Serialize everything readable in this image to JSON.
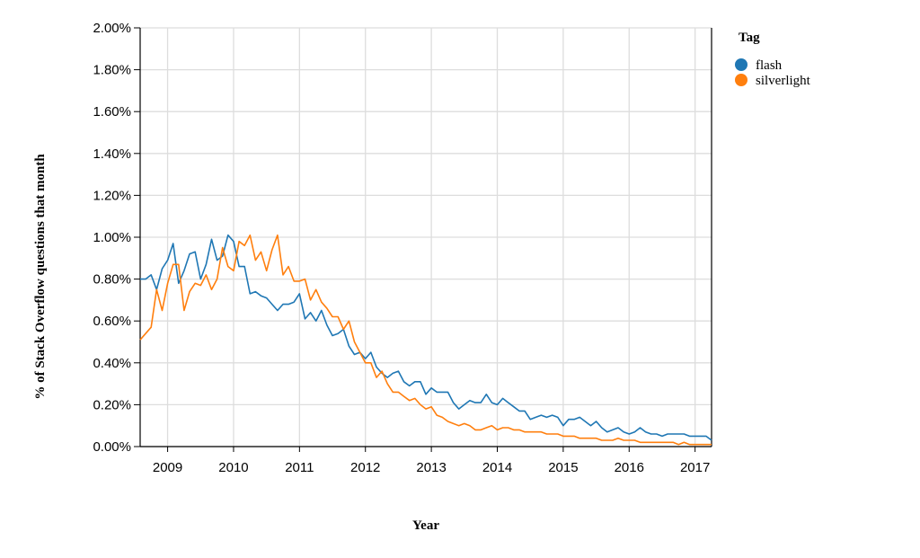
{
  "chart_data": {
    "type": "line",
    "title": "",
    "xlabel": "Year",
    "ylabel": "% of Stack Overflow questions that month",
    "x_ticks": [
      "2009",
      "2010",
      "2011",
      "2012",
      "2013",
      "2014",
      "2015",
      "2016",
      "2017"
    ],
    "y_ticks": [
      "0.00%",
      "0.20%",
      "0.40%",
      "0.60%",
      "0.80%",
      "1.00%",
      "1.20%",
      "1.40%",
      "1.60%",
      "1.80%",
      "2.00%"
    ],
    "xlim": [
      "2008-08",
      "2017-04"
    ],
    "ylim": [
      0,
      2.0
    ],
    "y_unit": "%",
    "grid": true,
    "legend": {
      "title": "Tag",
      "position": "right"
    },
    "x": [
      "2008-08",
      "2008-09",
      "2008-10",
      "2008-11",
      "2008-12",
      "2009-01",
      "2009-02",
      "2009-03",
      "2009-04",
      "2009-05",
      "2009-06",
      "2009-07",
      "2009-08",
      "2009-09",
      "2009-10",
      "2009-11",
      "2009-12",
      "2010-01",
      "2010-02",
      "2010-03",
      "2010-04",
      "2010-05",
      "2010-06",
      "2010-07",
      "2010-08",
      "2010-09",
      "2010-10",
      "2010-11",
      "2010-12",
      "2011-01",
      "2011-02",
      "2011-03",
      "2011-04",
      "2011-05",
      "2011-06",
      "2011-07",
      "2011-08",
      "2011-09",
      "2011-10",
      "2011-11",
      "2011-12",
      "2012-01",
      "2012-02",
      "2012-03",
      "2012-04",
      "2012-05",
      "2012-06",
      "2012-07",
      "2012-08",
      "2012-09",
      "2012-10",
      "2012-11",
      "2012-12",
      "2013-01",
      "2013-02",
      "2013-03",
      "2013-04",
      "2013-05",
      "2013-06",
      "2013-07",
      "2013-08",
      "2013-09",
      "2013-10",
      "2013-11",
      "2013-12",
      "2014-01",
      "2014-02",
      "2014-03",
      "2014-04",
      "2014-05",
      "2014-06",
      "2014-07",
      "2014-08",
      "2014-09",
      "2014-10",
      "2014-11",
      "2014-12",
      "2015-01",
      "2015-02",
      "2015-03",
      "2015-04",
      "2015-05",
      "2015-06",
      "2015-07",
      "2015-08",
      "2015-09",
      "2015-10",
      "2015-11",
      "2015-12",
      "2016-01",
      "2016-02",
      "2016-03",
      "2016-04",
      "2016-05",
      "2016-06",
      "2016-07",
      "2016-08",
      "2016-09",
      "2016-10",
      "2016-11",
      "2016-12",
      "2017-01",
      "2017-02",
      "2017-03",
      "2017-04"
    ],
    "series": [
      {
        "name": "flash",
        "color": "#1f77b4",
        "values": [
          0.8,
          0.8,
          0.82,
          0.75,
          0.85,
          0.89,
          0.97,
          0.78,
          0.84,
          0.92,
          0.93,
          0.8,
          0.87,
          0.99,
          0.89,
          0.91,
          1.01,
          0.98,
          0.86,
          0.86,
          0.73,
          0.74,
          0.72,
          0.71,
          0.68,
          0.65,
          0.68,
          0.68,
          0.69,
          0.73,
          0.61,
          0.64,
          0.6,
          0.65,
          0.58,
          0.53,
          0.54,
          0.56,
          0.48,
          0.44,
          0.45,
          0.42,
          0.45,
          0.38,
          0.35,
          0.33,
          0.35,
          0.36,
          0.31,
          0.29,
          0.31,
          0.31,
          0.25,
          0.28,
          0.26,
          0.26,
          0.26,
          0.21,
          0.18,
          0.2,
          0.22,
          0.21,
          0.21,
          0.25,
          0.21,
          0.2,
          0.23,
          0.21,
          0.19,
          0.17,
          0.17,
          0.13,
          0.14,
          0.15,
          0.14,
          0.15,
          0.14,
          0.1,
          0.13,
          0.13,
          0.14,
          0.12,
          0.1,
          0.12,
          0.09,
          0.07,
          0.08,
          0.09,
          0.07,
          0.06,
          0.07,
          0.09,
          0.07,
          0.06,
          0.06,
          0.05,
          0.06,
          0.06,
          0.06,
          0.06,
          0.05,
          0.05,
          0.05,
          0.05,
          0.03
        ]
      },
      {
        "name": "silverlight",
        "color": "#ff7f0e",
        "values": [
          0.51,
          0.54,
          0.57,
          0.75,
          0.65,
          0.78,
          0.87,
          0.87,
          0.65,
          0.74,
          0.78,
          0.77,
          0.82,
          0.75,
          0.8,
          0.95,
          0.86,
          0.84,
          0.98,
          0.96,
          1.01,
          0.89,
          0.93,
          0.84,
          0.94,
          1.01,
          0.82,
          0.86,
          0.79,
          0.79,
          0.8,
          0.7,
          0.75,
          0.69,
          0.66,
          0.62,
          0.62,
          0.56,
          0.6,
          0.5,
          0.45,
          0.4,
          0.4,
          0.33,
          0.36,
          0.3,
          0.26,
          0.26,
          0.24,
          0.22,
          0.23,
          0.2,
          0.18,
          0.19,
          0.15,
          0.14,
          0.12,
          0.11,
          0.1,
          0.11,
          0.1,
          0.08,
          0.08,
          0.09,
          0.1,
          0.08,
          0.09,
          0.09,
          0.08,
          0.08,
          0.07,
          0.07,
          0.07,
          0.07,
          0.06,
          0.06,
          0.06,
          0.05,
          0.05,
          0.05,
          0.04,
          0.04,
          0.04,
          0.04,
          0.03,
          0.03,
          0.03,
          0.04,
          0.03,
          0.03,
          0.03,
          0.02,
          0.02,
          0.02,
          0.02,
          0.02,
          0.02,
          0.02,
          0.01,
          0.02,
          0.01,
          0.01,
          0.01,
          0.01,
          0.01
        ]
      }
    ]
  }
}
